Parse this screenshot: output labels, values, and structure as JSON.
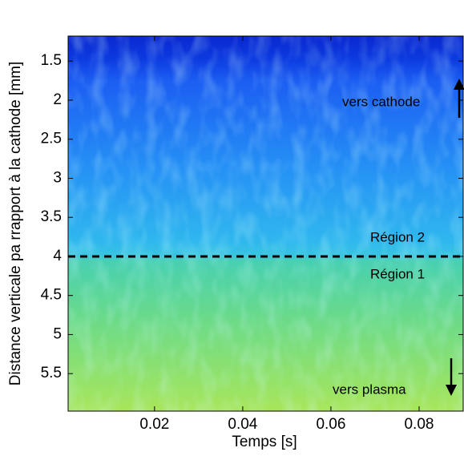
{
  "chart_data": {
    "type": "heatmap",
    "xlabel": "Temps [s]",
    "ylabel": "Distance verticale pa rrapport à la cathode [mm]",
    "xlim": [
      0.0004,
      0.09
    ],
    "xticks": [
      0.02,
      0.04,
      0.06,
      0.08
    ],
    "ylim": [
      1.18,
      5.98
    ],
    "yticks": [
      1.5,
      2,
      2.5,
      3,
      3.5,
      4,
      4.5,
      5,
      5.5
    ],
    "y_reversed": true,
    "hline": 4,
    "annotations": [
      "vers cathode",
      "Région 2",
      "Région 1",
      "vers plasma"
    ]
  }
}
